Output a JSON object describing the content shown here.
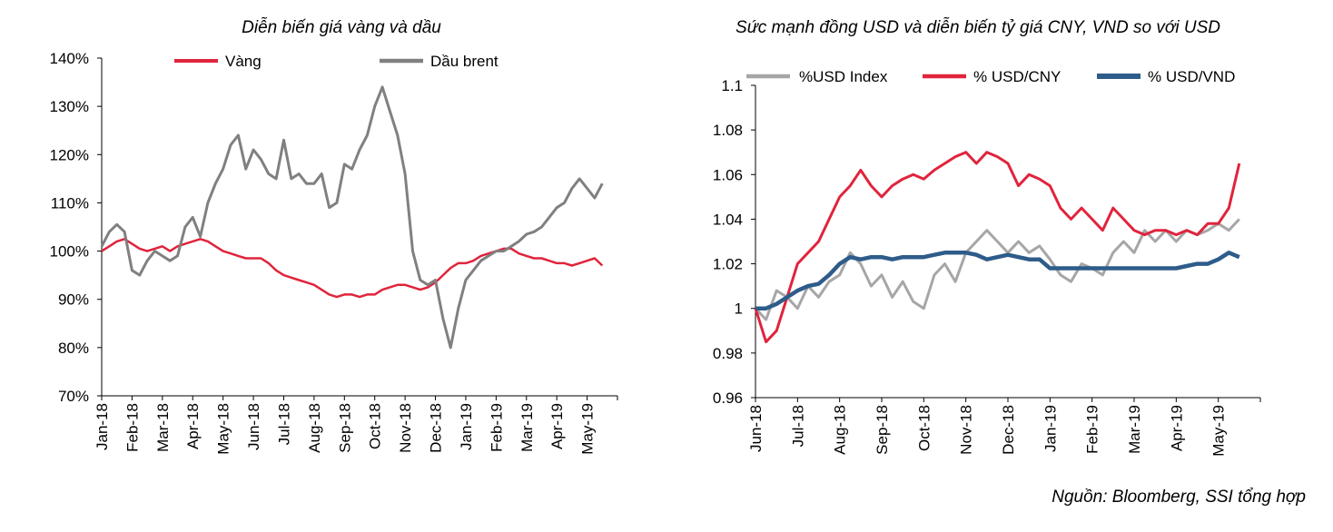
{
  "source_note": "Nguồn: Bloomberg, SSI tổng hợp",
  "chart_data": [
    {
      "type": "line",
      "title": "Diễn biến giá vàng và dầu",
      "xlabel": "",
      "ylabel": "",
      "ylim": [
        70,
        140
      ],
      "y_ticks": [
        "70%",
        "80%",
        "90%",
        "100%",
        "110%",
        "120%",
        "130%",
        "140%"
      ],
      "categories": [
        "Jan-18",
        "Feb-18",
        "Mar-18",
        "Apr-18",
        "May-18",
        "Jun-18",
        "Jul-18",
        "Aug-18",
        "Sep-18",
        "Oct-18",
        "Nov-18",
        "Dec-18",
        "Jan-19",
        "Feb-19",
        "Mar-19",
        "Apr-19",
        "May-19"
      ],
      "grid": false,
      "legend": "top",
      "series": [
        {
          "name": "Vàng",
          "color": "#e0243c",
          "x": [
            0,
            0.25,
            0.5,
            0.75,
            1,
            1.25,
            1.5,
            1.75,
            2,
            2.25,
            2.5,
            2.75,
            3,
            3.25,
            3.5,
            3.75,
            4,
            4.25,
            4.5,
            4.75,
            5,
            5.25,
            5.5,
            5.75,
            6,
            6.25,
            6.5,
            6.75,
            7,
            7.25,
            7.5,
            7.75,
            8,
            8.25,
            8.5,
            8.75,
            9,
            9.25,
            9.5,
            9.75,
            10,
            10.25,
            10.5,
            10.75,
            11,
            11.25,
            11.5,
            11.75,
            12,
            12.25,
            12.5,
            12.75,
            13,
            13.25,
            13.5,
            13.75,
            14,
            14.25,
            14.5,
            14.75,
            15,
            15.25,
            15.5,
            15.75,
            16,
            16.25,
            16.5
          ],
          "values": [
            100,
            101,
            102,
            102.5,
            101.5,
            100.5,
            100,
            100.5,
            101,
            100,
            101,
            101.5,
            102,
            102.5,
            102,
            101,
            100,
            99.5,
            99,
            98.5,
            98.5,
            98.5,
            97.5,
            96,
            95,
            94.5,
            94,
            93.5,
            93,
            92,
            91,
            90.5,
            91,
            91,
            90.5,
            91,
            91,
            92,
            92.5,
            93,
            93,
            92.5,
            92,
            92.5,
            93.5,
            95,
            96.5,
            97.5,
            97.5,
            98,
            99,
            99.5,
            100,
            100.5,
            100.5,
            99.5,
            99,
            98.5,
            98.5,
            98,
            97.5,
            97.5,
            97,
            97.5,
            98,
            98.5,
            97
          ]
        },
        {
          "name": "Dầu brent",
          "color": "#808080",
          "x": [
            0,
            0.25,
            0.5,
            0.75,
            1,
            1.25,
            1.5,
            1.75,
            2,
            2.25,
            2.5,
            2.75,
            3,
            3.25,
            3.5,
            3.75,
            4,
            4.25,
            4.5,
            4.75,
            5,
            5.25,
            5.5,
            5.75,
            6,
            6.25,
            6.5,
            6.75,
            7,
            7.25,
            7.5,
            7.75,
            8,
            8.25,
            8.5,
            8.75,
            9,
            9.25,
            9.5,
            9.75,
            10,
            10.25,
            10.5,
            10.75,
            11,
            11.25,
            11.5,
            11.75,
            12,
            12.25,
            12.5,
            12.75,
            13,
            13.25,
            13.5,
            13.75,
            14,
            14.25,
            14.5,
            14.75,
            15,
            15.25,
            15.5,
            15.75,
            16,
            16.25,
            16.5
          ],
          "values": [
            101,
            104,
            105.5,
            104,
            96,
            95,
            98,
            100,
            99,
            98,
            99,
            105,
            107,
            103,
            110,
            114,
            117,
            122,
            124,
            117,
            121,
            119,
            116,
            115,
            123,
            115,
            116,
            114,
            114,
            116,
            109,
            110,
            118,
            117,
            121,
            124,
            130,
            134,
            129,
            124,
            116,
            100,
            94,
            93,
            94,
            86,
            80,
            88,
            94,
            96,
            98,
            99,
            100,
            100,
            101,
            102,
            103.5,
            104,
            105,
            107,
            109,
            110,
            113,
            115,
            113,
            111,
            114
          ]
        }
      ]
    },
    {
      "type": "line",
      "title": "Sức mạnh đồng USD và diễn biến tỷ giá CNY, VND so với USD",
      "xlabel": "",
      "ylabel": "",
      "ylim": [
        0.96,
        1.1
      ],
      "y_ticks": [
        "0.96",
        "0.98",
        "1",
        "1.02",
        "1.04",
        "1.06",
        "1.08",
        "1.1"
      ],
      "categories": [
        "Jun-18",
        "Jul-18",
        "Aug-18",
        "Sep-18",
        "Oct-18",
        "Nov-18",
        "Dec-18",
        "Jan-19",
        "Feb-19",
        "Mar-19",
        "Apr-19",
        "May-19"
      ],
      "grid": false,
      "legend": "top",
      "series": [
        {
          "name": "%USD Index",
          "color": "#a6a6a6",
          "x": [
            0,
            0.25,
            0.5,
            0.75,
            1,
            1.25,
            1.5,
            1.75,
            2,
            2.25,
            2.5,
            2.75,
            3,
            3.25,
            3.5,
            3.75,
            4,
            4.25,
            4.5,
            4.75,
            5,
            5.25,
            5.5,
            5.75,
            6,
            6.25,
            6.5,
            6.75,
            7,
            7.25,
            7.5,
            7.75,
            8,
            8.25,
            8.5,
            8.75,
            9,
            9.25,
            9.5,
            9.75,
            10,
            10.25,
            10.5,
            10.75,
            11,
            11.25,
            11.5
          ],
          "values": [
            1,
            0.995,
            1.008,
            1.005,
            1.0,
            1.01,
            1.005,
            1.012,
            1.015,
            1.025,
            1.02,
            1.01,
            1.015,
            1.005,
            1.012,
            1.003,
            1.0,
            1.015,
            1.02,
            1.012,
            1.025,
            1.03,
            1.035,
            1.03,
            1.025,
            1.03,
            1.025,
            1.028,
            1.022,
            1.015,
            1.012,
            1.02,
            1.018,
            1.015,
            1.025,
            1.03,
            1.025,
            1.035,
            1.03,
            1.035,
            1.03,
            1.035,
            1.033,
            1.035,
            1.038,
            1.035,
            1.04
          ]
        },
        {
          "name": "% USD/CNY",
          "color": "#e0243c",
          "x": [
            0,
            0.25,
            0.5,
            0.75,
            1,
            1.25,
            1.5,
            1.75,
            2,
            2.25,
            2.5,
            2.75,
            3,
            3.25,
            3.5,
            3.75,
            4,
            4.25,
            4.5,
            4.75,
            5,
            5.25,
            5.5,
            5.75,
            6,
            6.25,
            6.5,
            6.75,
            7,
            7.25,
            7.5,
            7.75,
            8,
            8.25,
            8.5,
            8.75,
            9,
            9.25,
            9.5,
            9.75,
            10,
            10.25,
            10.5,
            10.75,
            11,
            11.25,
            11.5
          ],
          "values": [
            1,
            0.985,
            0.99,
            1.005,
            1.02,
            1.025,
            1.03,
            1.04,
            1.05,
            1.055,
            1.062,
            1.055,
            1.05,
            1.055,
            1.058,
            1.06,
            1.058,
            1.062,
            1.065,
            1.068,
            1.07,
            1.065,
            1.07,
            1.068,
            1.065,
            1.055,
            1.06,
            1.058,
            1.055,
            1.045,
            1.04,
            1.045,
            1.04,
            1.035,
            1.045,
            1.04,
            1.035,
            1.033,
            1.035,
            1.035,
            1.033,
            1.035,
            1.033,
            1.038,
            1.038,
            1.045,
            1.065
          ]
        },
        {
          "name": "% USD/VND",
          "color": "#2e5c8a",
          "x": [
            0,
            0.25,
            0.5,
            0.75,
            1,
            1.25,
            1.5,
            1.75,
            2,
            2.25,
            2.5,
            2.75,
            3,
            3.25,
            3.5,
            3.75,
            4,
            4.25,
            4.5,
            4.75,
            5,
            5.25,
            5.5,
            5.75,
            6,
            6.25,
            6.5,
            6.75,
            7,
            7.25,
            7.5,
            7.75,
            8,
            8.25,
            8.5,
            8.75,
            9,
            9.25,
            9.5,
            9.75,
            10,
            10.25,
            10.5,
            10.75,
            11,
            11.25,
            11.5
          ],
          "values": [
            1,
            1.0,
            1.002,
            1.005,
            1.008,
            1.01,
            1.011,
            1.015,
            1.02,
            1.023,
            1.022,
            1.023,
            1.023,
            1.022,
            1.023,
            1.023,
            1.023,
            1.024,
            1.025,
            1.025,
            1.025,
            1.024,
            1.022,
            1.023,
            1.024,
            1.023,
            1.022,
            1.022,
            1.018,
            1.018,
            1.018,
            1.018,
            1.018,
            1.018,
            1.018,
            1.018,
            1.018,
            1.018,
            1.018,
            1.018,
            1.018,
            1.019,
            1.02,
            1.02,
            1.022,
            1.025,
            1.023
          ]
        }
      ]
    }
  ]
}
